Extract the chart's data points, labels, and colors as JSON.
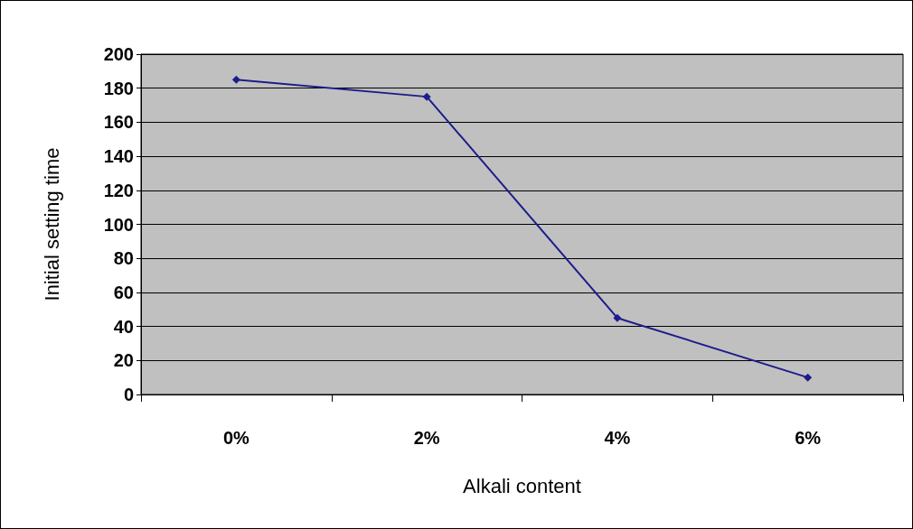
{
  "chart_data": {
    "type": "line",
    "xlabel": "Alkali content",
    "ylabel": "Initial setting time",
    "categories": [
      "0%",
      "2%",
      "4%",
      "6%"
    ],
    "values": [
      185,
      175,
      45,
      10
    ],
    "color": "#1c1c8c",
    "marker": "diamond",
    "ylim": [
      0,
      200
    ],
    "yticks": [
      0,
      20,
      40,
      60,
      80,
      100,
      120,
      140,
      160,
      180,
      200
    ],
    "grid": "y"
  }
}
